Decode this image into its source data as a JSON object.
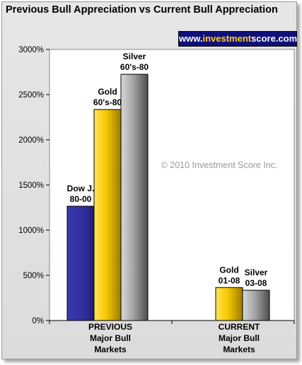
{
  "title": "Previous Bull Appreciation vs Current Bull Appreciation",
  "brand": {
    "prefix": "www.",
    "accent": "investment",
    "suffix": "score.com"
  },
  "watermark": "© 2010 Investment Score Inc.",
  "colors": {
    "background": "#e6e6e6",
    "plot_area": "#ffffff",
    "dow": "#2e2d9a",
    "gold": "#f2c200",
    "silver": "#8f8f8f",
    "brand_bg": "#10107a",
    "brand_accent": "#ffd21a"
  },
  "chart_data": {
    "type": "bar",
    "title": "Previous Bull Appreciation vs Current Bull Appreciation",
    "ylim": [
      0,
      3000
    ],
    "y_ticks": [
      "0%",
      "500%",
      "1000%",
      "1500%",
      "2000%",
      "2500%",
      "3000%"
    ],
    "y_tick_values": [
      0,
      500,
      1000,
      1500,
      2000,
      2500,
      3000
    ],
    "categories": [
      {
        "lines": [
          "PREVIOUS",
          "Major Bull",
          "Markets"
        ]
      },
      {
        "lines": [
          "CURRENT",
          "Major Bull",
          "Markets"
        ]
      }
    ],
    "groups": [
      {
        "category": 0,
        "bars": [
          {
            "label": [
              "Dow J.",
              "80-00"
            ],
            "value": 1265,
            "color": "dow"
          },
          {
            "label": [
              "Gold",
              "60's-80"
            ],
            "value": 2335,
            "color": "gold"
          },
          {
            "label": [
              "Silver",
              "60's-80"
            ],
            "value": 2725,
            "color": "silver"
          }
        ]
      },
      {
        "category": 1,
        "bars": [
          {
            "label": [
              "Gold",
              "01-08"
            ],
            "value": 365,
            "color": "gold"
          },
          {
            "label": [
              "Silver",
              "03-08"
            ],
            "value": 335,
            "color": "silver"
          }
        ]
      }
    ],
    "grid": false,
    "legend": "none"
  }
}
